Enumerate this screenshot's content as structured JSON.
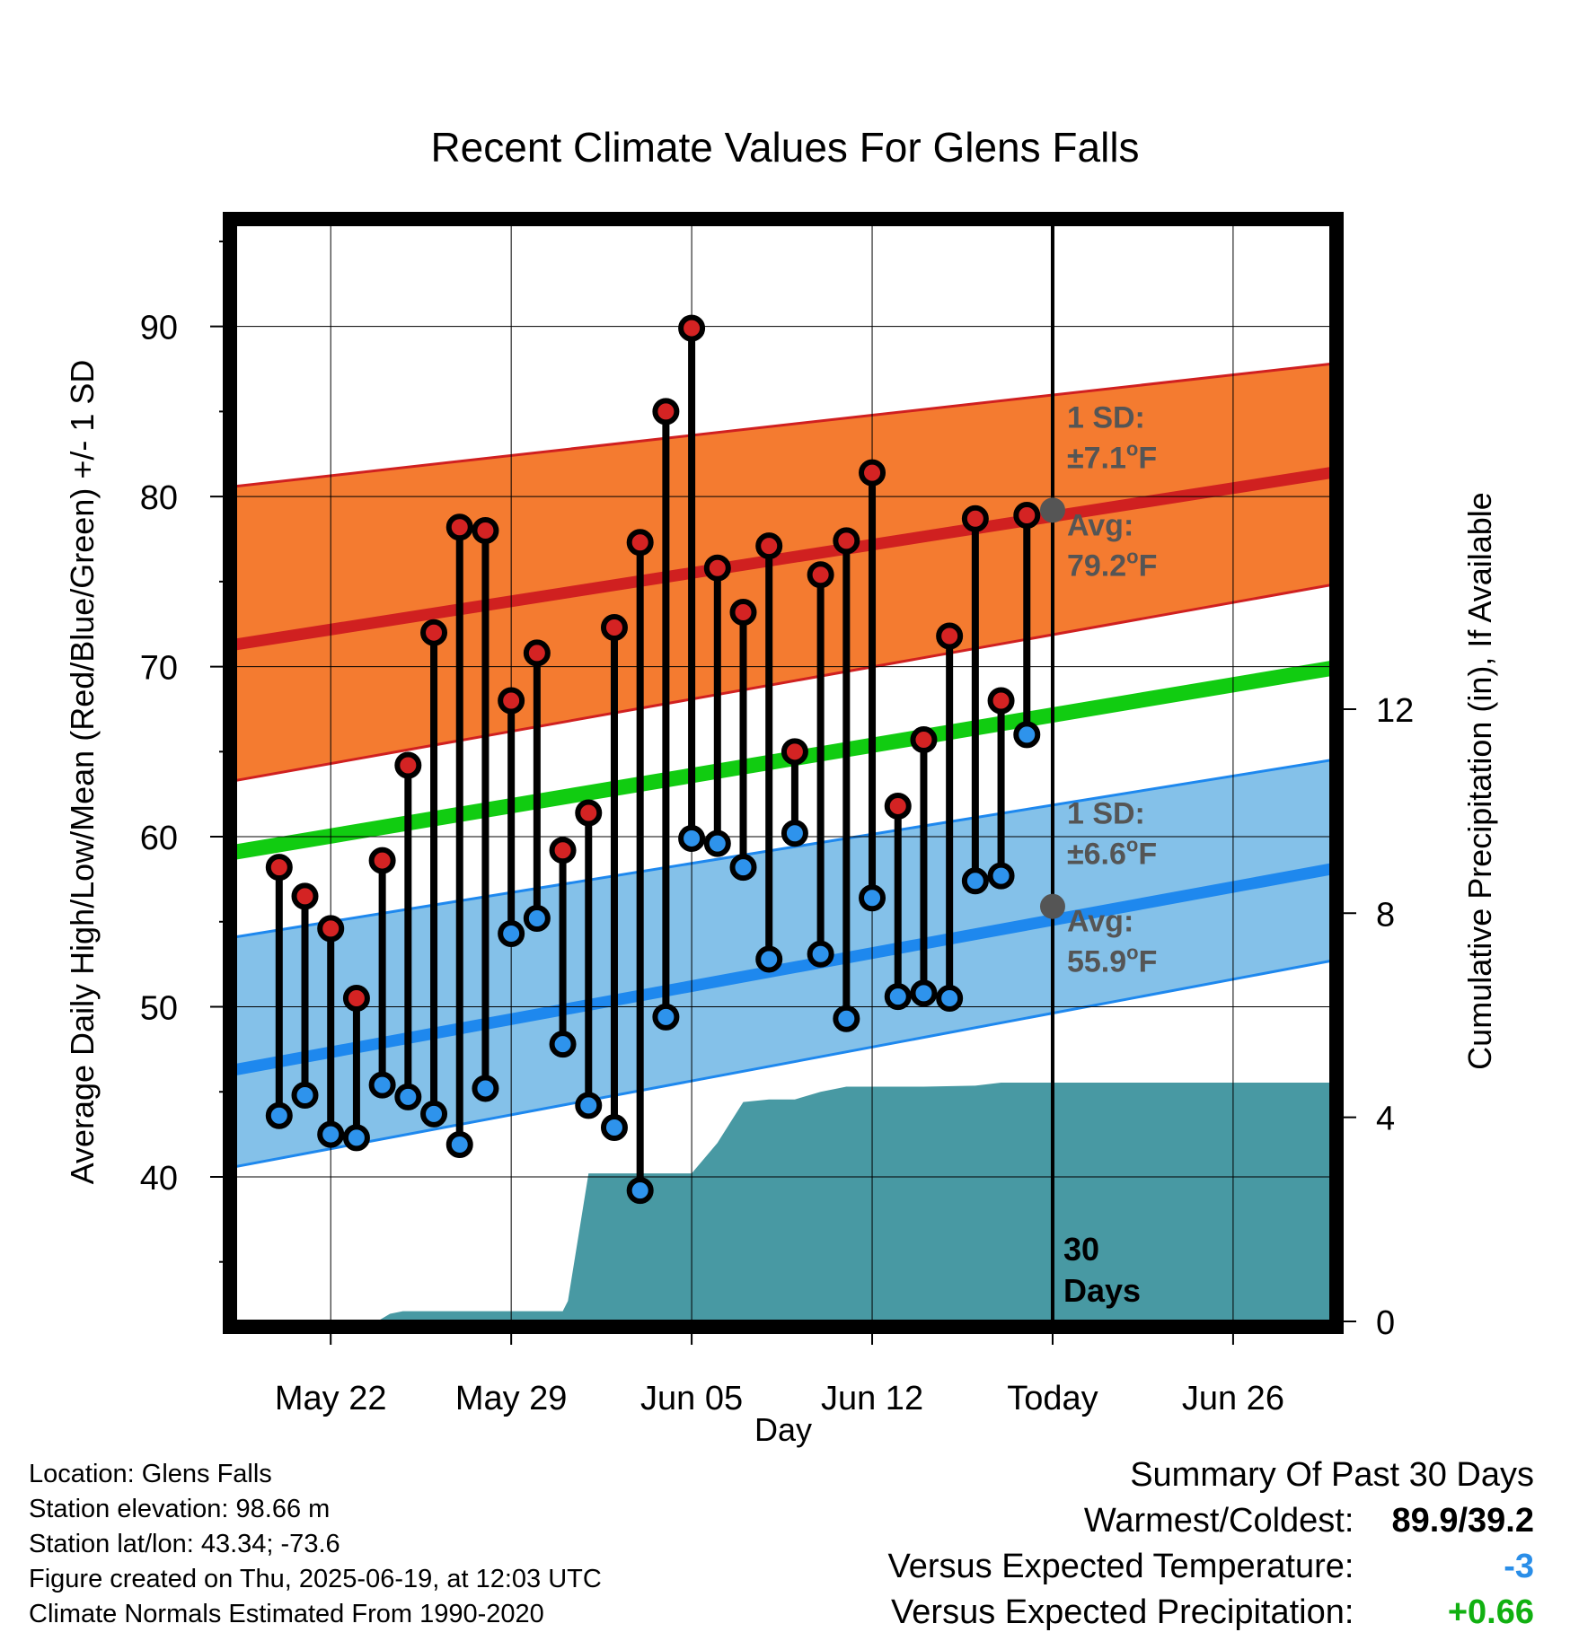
{
  "chart_data": {
    "type": "line",
    "title": "Recent Climate Values For Glens Falls",
    "xlabel": "Day",
    "ylabel_left": "Average Daily High/Low/Mean (Red/Blue/Green) +/- 1 SD",
    "ylabel_right": "Cumulative Precipitation (in), If Available",
    "x_tick_labels": [
      "May 22",
      "May 29",
      "Jun 05",
      "Jun 12",
      "Today",
      "Jun 26"
    ],
    "x_tick_days": [
      22,
      29,
      36,
      43,
      50,
      57
    ],
    "xlim": [
      18.3,
      60.8
    ],
    "ylim_left": [
      31.5,
      96
    ],
    "y_left_ticks": [
      40,
      50,
      60,
      70,
      80,
      90
    ],
    "y_left_tick_labels": [
      "40",
      "50",
      "60",
      "70",
      "80",
      "90"
    ],
    "ylim_right": [
      0,
      21.5
    ],
    "y_right_ticks": [
      0,
      4,
      8,
      12
    ],
    "y_right_tick_labels": [
      "0",
      "4",
      "8",
      "12"
    ],
    "grid": true,
    "today_day": 50,
    "days_window": 30,
    "days_label": [
      "30",
      "Days"
    ],
    "observed": {
      "day": [
        20,
        21,
        22,
        23,
        24,
        25,
        26,
        27,
        28,
        29,
        30,
        31,
        32,
        33,
        34,
        35,
        36,
        37,
        38,
        39,
        40,
        41,
        42,
        43,
        44,
        45,
        46,
        47,
        48,
        49
      ],
      "high": [
        58.2,
        56.5,
        54.6,
        50.5,
        58.6,
        64.2,
        72.0,
        78.2,
        78.0,
        68.0,
        70.8,
        59.2,
        61.4,
        72.3,
        77.3,
        85.0,
        89.9,
        75.8,
        73.2,
        77.1,
        65.0,
        75.4,
        77.4,
        81.4,
        61.8,
        65.7,
        71.8,
        78.7,
        68.0,
        78.9
      ],
      "low": [
        43.6,
        44.8,
        42.5,
        42.3,
        45.4,
        44.7,
        43.7,
        41.9,
        45.2,
        54.3,
        55.2,
        47.8,
        44.2,
        42.9,
        39.2,
        49.4,
        59.9,
        59.6,
        58.2,
        52.8,
        60.2,
        53.1,
        49.3,
        56.4,
        50.6,
        50.8,
        50.5,
        57.4,
        57.7,
        66.0
      ]
    },
    "normals": {
      "day": [
        18.3,
        60.8
      ],
      "high_avg": [
        71.3,
        81.4
      ],
      "high_upper": [
        80.6,
        87.8
      ],
      "high_lower": [
        63.3,
        74.8
      ],
      "low_avg": [
        46.3,
        58.1
      ],
      "low_upper": [
        54.1,
        64.5
      ],
      "low_lower": [
        40.6,
        52.7
      ],
      "mean_avg": [
        59.1,
        69.9
      ]
    },
    "precip": {
      "day": [
        18.3,
        19.7,
        20.0,
        23.8,
        24.3,
        24.8,
        25.8,
        31.0,
        31.2,
        32.0,
        34.0,
        36.0,
        37.0,
        38.0,
        39.0,
        40.0,
        41.0,
        42.0,
        43.0,
        45.0,
        47.0,
        48.0,
        50.0,
        60.8
      ],
      "cumulative": [
        0,
        0,
        0,
        0.0,
        0.15,
        0.2,
        0.2,
        0.2,
        0.4,
        2.9,
        2.9,
        2.9,
        3.5,
        4.3,
        4.35,
        4.35,
        4.5,
        4.6,
        4.6,
        4.6,
        4.62,
        4.68,
        4.68,
        4.68
      ]
    },
    "annotations": {
      "high": {
        "sd_label": "1 SD:",
        "sd_value": "±7.1",
        "avg_label": "Avg:",
        "avg_value": "79.2",
        "unit_deg": "o",
        "unit": "F",
        "marker_value": 79.2
      },
      "low": {
        "sd_label": "1 SD:",
        "sd_value": "±6.6",
        "avg_label": "Avg:",
        "avg_value": "55.9",
        "unit_deg": "o",
        "unit": "F",
        "marker_value": 55.9
      }
    },
    "colors": {
      "high_band": "#f47b30",
      "high_line": "#d02020",
      "low_band": "#84c1e9",
      "low_line": "#1e88ee",
      "mean_line": "#11cc11",
      "precip_fill": "#4899a3",
      "high_dot": "#d42323",
      "low_dot": "#2e93ec",
      "marker": "#555555"
    }
  },
  "meta": {
    "location": "Location: Glens Falls",
    "elevation": "Station elevation: 98.66 m",
    "latlon": "Station lat/lon: 43.34; -73.6",
    "created": "Figure created on Thu, 2025-06-19, at 12:03 UTC",
    "normals": "Climate Normals Estimated From 1990-2020"
  },
  "summary": {
    "heading": "Summary Of Past 30 Days",
    "warmest_label": "Warmest/Coldest:",
    "warmest_value": "89.9/39.2",
    "temp_label": "Versus Expected Temperature:",
    "temp_value": "-3",
    "temp_color": "#2a8ee8",
    "precip_label": "Versus Expected Precipitation:",
    "precip_value": "+0.66",
    "precip_color": "#11b011"
  }
}
